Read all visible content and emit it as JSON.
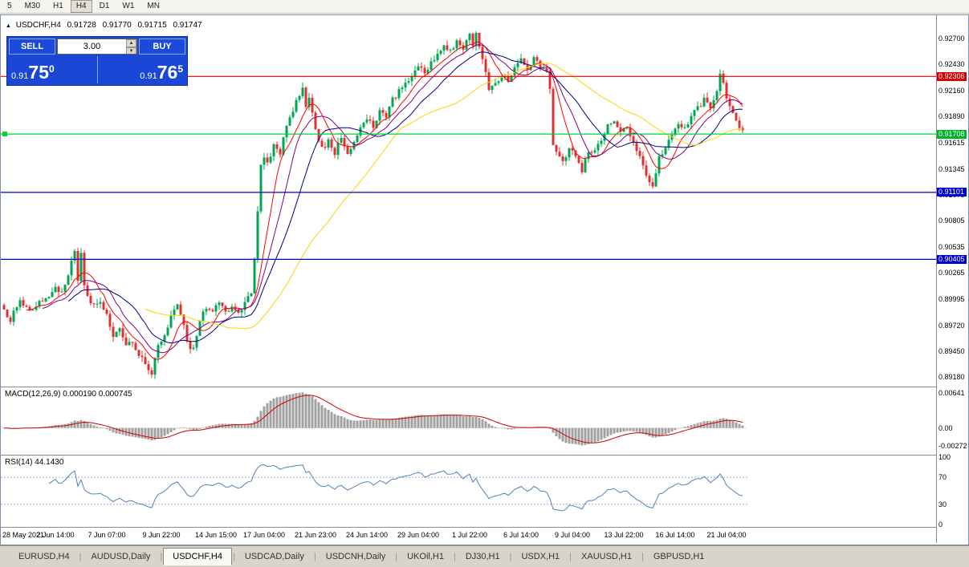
{
  "toolbar": {
    "timeframes": [
      "5",
      "M30",
      "H1",
      "H4",
      "D1",
      "W1",
      "MN"
    ],
    "active_timeframe": "H4"
  },
  "symbol_line": {
    "collapse_icon": "▲",
    "symbol": "USDCHF,H4",
    "open": "0.91728",
    "high": "0.91770",
    "low": "0.91715",
    "close": "0.91747"
  },
  "trade_panel": {
    "sell_label": "SELL",
    "buy_label": "BUY",
    "volume": "3.00",
    "sell_price": {
      "prefix": "0.91",
      "big": "75",
      "sup": "0"
    },
    "buy_price": {
      "prefix": "0.91",
      "big": "76",
      "sup": "5"
    }
  },
  "price_axis": {
    "ticks": [
      "0.92700",
      "0.92430",
      "0.92160",
      "0.91890",
      "0.91615",
      "0.91345",
      "0.91075",
      "0.90805",
      "0.90535",
      "0.90265",
      "0.89995",
      "0.89720",
      "0.89450",
      "0.89180"
    ]
  },
  "levels": [
    {
      "value": 0.92306,
      "label": "0.92306",
      "tag_color": "#d60000",
      "line_color": "#e00000",
      "anchor": false
    },
    {
      "value": 0.91708,
      "label": "0.91708",
      "tag_color": "#00b22c",
      "line_color": "#00d232",
      "anchor": true
    },
    {
      "value": 0.91101,
      "label": "0.91101",
      "tag_color": "#0000cc",
      "line_color": "#0000cc",
      "anchor": false
    },
    {
      "value": 0.90405,
      "label": "0.90405",
      "tag_color": "#0000cc",
      "line_color": "#0000cc",
      "anchor": false
    }
  ],
  "macd_panel": {
    "title": "MACD(12,26,9) 0.000190 0.000745",
    "ticks": [
      {
        "value": 0.00641,
        "label": "0.00641"
      },
      {
        "value": 0,
        "label": "0.00"
      },
      {
        "value": -0.00272,
        "label": "-0.00272"
      }
    ]
  },
  "rsi_panel": {
    "title": "RSI(14) 44.1430",
    "ticks": [
      {
        "value": 100,
        "label": "100"
      },
      {
        "value": 70,
        "label": "70"
      },
      {
        "value": 30,
        "label": "30"
      },
      {
        "value": 0,
        "label": "0"
      }
    ],
    "level_lines": [
      70,
      30
    ]
  },
  "time_axis": [
    {
      "label": "28 May 2021",
      "i": 0
    },
    {
      "label": "2 Jun 14:00",
      "i": 16
    },
    {
      "label": "7 Jun 07:00",
      "i": 32
    },
    {
      "label": "9 Jun 22:00",
      "i": 49
    },
    {
      "label": "14 Jun 15:00",
      "i": 66
    },
    {
      "label": "17 Jun 04:00",
      "i": 81
    },
    {
      "label": "21 Jun 23:00",
      "i": 97
    },
    {
      "label": "24 Jun 14:00",
      "i": 113
    },
    {
      "label": "29 Jun 04:00",
      "i": 129
    },
    {
      "label": "1 Jul 22:00",
      "i": 145
    },
    {
      "label": "6 Jul 14:00",
      "i": 161
    },
    {
      "label": "9 Jul 04:00",
      "i": 177
    },
    {
      "label": "13 Jul 22:00",
      "i": 193
    },
    {
      "label": "16 Jul 14:00",
      "i": 209
    },
    {
      "label": "21 Jul 04:00",
      "i": 225
    }
  ],
  "tabs": {
    "items": [
      "EURUSD,H4",
      "AUDUSD,Daily",
      "USDCHF,H4",
      "USDCAD,Daily",
      "USDCNH,Daily",
      "UKOil,H1",
      "DJ30,H1",
      "USDX,H1",
      "XAUUSD,H1",
      "GBPUSD,H1"
    ],
    "active": "USDCHF,H4"
  },
  "chart_data": {
    "type": "candlestick",
    "symbol": "USDCHF",
    "timeframe": "H4",
    "title": "USDCHF,H4",
    "y_range": [
      0.8901,
      0.9294
    ],
    "n_candles": 231,
    "last_close": 0.91747,
    "volatility": 0.0006,
    "seed": 13,
    "candle_colors": {
      "up": "#00a651",
      "down": "#e03131"
    },
    "price_path": [
      [
        0,
        0.8993
      ],
      [
        3,
        0.8978
      ],
      [
        6,
        0.8999
      ],
      [
        9,
        0.8986
      ],
      [
        12,
        0.8996
      ],
      [
        15,
        0.9002
      ],
      [
        17,
        0.9014
      ],
      [
        19,
        0.9004
      ],
      [
        21,
        0.9026
      ],
      [
        23,
        0.905
      ],
      [
        24,
        0.9016
      ],
      [
        25,
        0.9046
      ],
      [
        26,
        0.9012
      ],
      [
        28,
        0.8996
      ],
      [
        31,
        0.8997
      ],
      [
        33,
        0.8984
      ],
      [
        35,
        0.8961
      ],
      [
        37,
        0.8969
      ],
      [
        39,
        0.8949
      ],
      [
        41,
        0.8956
      ],
      [
        43,
        0.8941
      ],
      [
        45,
        0.8931
      ],
      [
        47,
        0.8923
      ],
      [
        49,
        0.895
      ],
      [
        51,
        0.896
      ],
      [
        53,
        0.8981
      ],
      [
        55,
        0.8993
      ],
      [
        57,
        0.8971
      ],
      [
        58,
        0.8953
      ],
      [
        60,
        0.8946
      ],
      [
        62,
        0.8976
      ],
      [
        64,
        0.8991
      ],
      [
        66,
        0.8986
      ],
      [
        68,
        0.8994
      ],
      [
        70,
        0.8986
      ],
      [
        72,
        0.8993
      ],
      [
        74,
        0.8987
      ],
      [
        76,
        0.8994
      ],
      [
        78,
        0.9006
      ],
      [
        79,
        0.9042
      ],
      [
        80,
        0.9088
      ],
      [
        81,
        0.9136
      ],
      [
        82,
        0.9149
      ],
      [
        83,
        0.9141
      ],
      [
        85,
        0.9159
      ],
      [
        87,
        0.9151
      ],
      [
        89,
        0.9179
      ],
      [
        91,
        0.9196
      ],
      [
        93,
        0.9211
      ],
      [
        94,
        0.9217
      ],
      [
        95,
        0.9201
      ],
      [
        96,
        0.9211
      ],
      [
        98,
        0.9176
      ],
      [
        100,
        0.9156
      ],
      [
        102,
        0.9163
      ],
      [
        104,
        0.9151
      ],
      [
        106,
        0.9169
      ],
      [
        108,
        0.9147
      ],
      [
        110,
        0.9163
      ],
      [
        112,
        0.9179
      ],
      [
        114,
        0.9187
      ],
      [
        116,
        0.9179
      ],
      [
        118,
        0.9196
      ],
      [
        120,
        0.9189
      ],
      [
        122,
        0.9206
      ],
      [
        124,
        0.9216
      ],
      [
        126,
        0.9223
      ],
      [
        128,
        0.9233
      ],
      [
        130,
        0.9241
      ],
      [
        132,
        0.9233
      ],
      [
        134,
        0.9246
      ],
      [
        136,
        0.9253
      ],
      [
        138,
        0.9263
      ],
      [
        140,
        0.9256
      ],
      [
        142,
        0.9269
      ],
      [
        144,
        0.9261
      ],
      [
        146,
        0.9273
      ],
      [
        147,
        0.9261
      ],
      [
        148,
        0.9273
      ],
      [
        150,
        0.9251
      ],
      [
        152,
        0.9216
      ],
      [
        154,
        0.9223
      ],
      [
        156,
        0.9231
      ],
      [
        158,
        0.9227
      ],
      [
        160,
        0.9241
      ],
      [
        162,
        0.9249
      ],
      [
        164,
        0.9239
      ],
      [
        166,
        0.9249
      ],
      [
        168,
        0.9241
      ],
      [
        170,
        0.9233
      ],
      [
        171,
        0.9216
      ],
      [
        172,
        0.9161
      ],
      [
        173,
        0.9153
      ],
      [
        175,
        0.9141
      ],
      [
        177,
        0.9156
      ],
      [
        179,
        0.9146
      ],
      [
        181,
        0.9133
      ],
      [
        183,
        0.9151
      ],
      [
        185,
        0.9156
      ],
      [
        187,
        0.9163
      ],
      [
        189,
        0.9179
      ],
      [
        191,
        0.9184
      ],
      [
        193,
        0.9171
      ],
      [
        195,
        0.9179
      ],
      [
        197,
        0.9163
      ],
      [
        199,
        0.9149
      ],
      [
        201,
        0.9129
      ],
      [
        203,
        0.9114
      ],
      [
        205,
        0.9146
      ],
      [
        207,
        0.9159
      ],
      [
        209,
        0.9169
      ],
      [
        211,
        0.9181
      ],
      [
        213,
        0.9176
      ],
      [
        215,
        0.9189
      ],
      [
        217,
        0.9197
      ],
      [
        219,
        0.9206
      ],
      [
        221,
        0.9199
      ],
      [
        223,
        0.9213
      ],
      [
        224,
        0.9231
      ],
      [
        225,
        0.9223
      ],
      [
        226,
        0.9206
      ],
      [
        228,
        0.9193
      ],
      [
        230,
        0.9176
      ]
    ],
    "moving_averages": [
      {
        "period": 8,
        "color": "#ff0000"
      },
      {
        "period": 13,
        "color": "#800080"
      },
      {
        "period": 21,
        "color": "#000080"
      },
      {
        "period": 45,
        "color": "#ffd400"
      }
    ],
    "indicators": {
      "macd": {
        "fast": 12,
        "slow": 26,
        "signal": 9,
        "histogram_color": "#a0a0a0",
        "signal_color": "#d40000"
      },
      "rsi": {
        "period": 14,
        "color": "#4f81bd"
      }
    }
  }
}
